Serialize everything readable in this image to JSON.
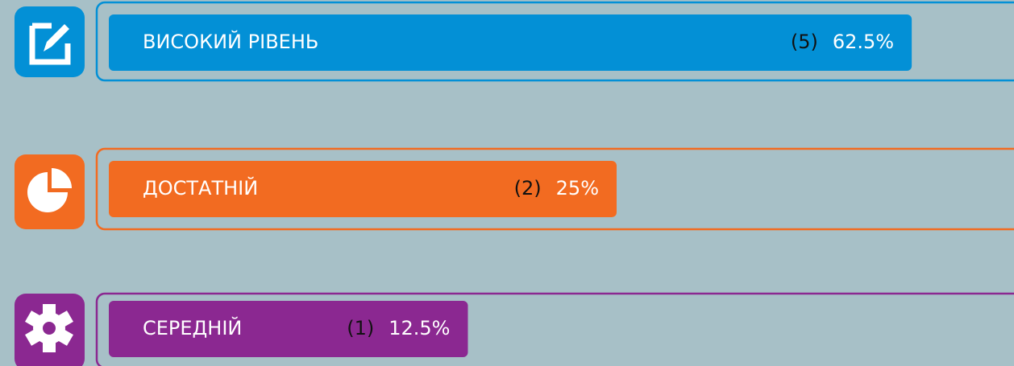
{
  "chart_data": {
    "type": "bar",
    "orientation": "horizontal",
    "categories": [
      "ВИСОКИЙ РІВЕНЬ",
      "ДОСТАТНІЙ",
      "СЕРЕДНІЙ"
    ],
    "values": [
      62.5,
      25,
      12.5
    ],
    "value_labels": [
      "62.5%",
      "25%",
      "12.5%"
    ],
    "counts": [
      5,
      2,
      1
    ],
    "count_labels": [
      "(5)",
      "(2)",
      "(1)"
    ],
    "colors": [
      "#0390d6",
      "#f26b21",
      "#8b2891"
    ]
  }
}
